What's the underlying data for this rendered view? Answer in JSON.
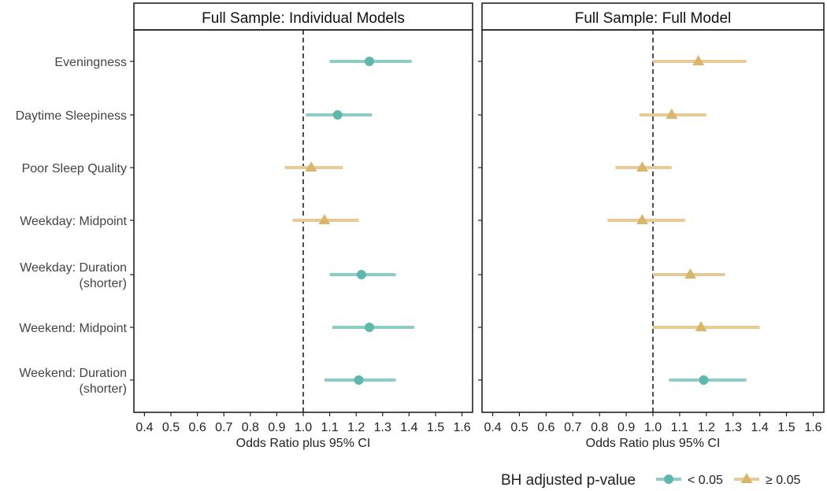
{
  "chart_data": [
    {
      "type": "scatter",
      "panel_title": "Full Sample: Individual Models",
      "xlabel": "Odds Ratio plus 95% CI",
      "xlim": [
        0.36,
        1.64
      ],
      "xticks": [
        "0.4",
        "0.5",
        "0.6",
        "0.7",
        "0.8",
        "0.9",
        "1.0",
        "1.1",
        "1.2",
        "1.3",
        "1.4",
        "1.5",
        "1.6"
      ],
      "reference_line": 1.0,
      "categories": [
        [
          "Eveningness"
        ],
        [
          "Daytime Sleepiness"
        ],
        [
          "Poor Sleep Quality"
        ],
        [
          "Weekday: Midpoint"
        ],
        [
          "Weekday: Duration",
          "(shorter)"
        ],
        [
          "Weekend: Midpoint"
        ],
        [
          "Weekend: Duration",
          "(shorter)"
        ]
      ],
      "points": [
        {
          "or": 1.25,
          "lo": 1.1,
          "hi": 1.41,
          "sig": "lt"
        },
        {
          "or": 1.13,
          "lo": 1.01,
          "hi": 1.26,
          "sig": "lt"
        },
        {
          "or": 1.03,
          "lo": 0.93,
          "hi": 1.15,
          "sig": "ge"
        },
        {
          "or": 1.08,
          "lo": 0.96,
          "hi": 1.21,
          "sig": "ge"
        },
        {
          "or": 1.22,
          "lo": 1.1,
          "hi": 1.35,
          "sig": "lt"
        },
        {
          "or": 1.25,
          "lo": 1.11,
          "hi": 1.42,
          "sig": "lt"
        },
        {
          "or": 1.21,
          "lo": 1.08,
          "hi": 1.35,
          "sig": "lt"
        }
      ]
    },
    {
      "type": "scatter",
      "panel_title": "Full Sample: Full Model",
      "xlabel": "Odds Ratio plus 95% CI",
      "xlim": [
        0.36,
        1.64
      ],
      "xticks": [
        "0.4",
        "0.5",
        "0.6",
        "0.7",
        "0.8",
        "0.9",
        "1.0",
        "1.1",
        "1.2",
        "1.3",
        "1.4",
        "1.5",
        "1.6"
      ],
      "reference_line": 1.0,
      "points": [
        {
          "or": 1.17,
          "lo": 1.0,
          "hi": 1.35,
          "sig": "ge"
        },
        {
          "or": 1.07,
          "lo": 0.95,
          "hi": 1.2,
          "sig": "ge"
        },
        {
          "or": 0.96,
          "lo": 0.86,
          "hi": 1.07,
          "sig": "ge"
        },
        {
          "or": 0.96,
          "lo": 0.83,
          "hi": 1.12,
          "sig": "ge"
        },
        {
          "or": 1.14,
          "lo": 1.0,
          "hi": 1.27,
          "sig": "ge"
        },
        {
          "or": 1.18,
          "lo": 1.0,
          "hi": 1.4,
          "sig": "ge"
        },
        {
          "or": 1.19,
          "lo": 1.06,
          "hi": 1.35,
          "sig": "lt"
        }
      ]
    }
  ],
  "legend": {
    "title": "BH adjusted p-value",
    "items": [
      {
        "key": "lt",
        "label": "< 0.05",
        "shape": "circle",
        "color": "#5fb8ae"
      },
      {
        "key": "ge",
        "label": "≥ 0.05",
        "shape": "triangle",
        "color": "#dab56c"
      }
    ]
  },
  "colors": {
    "lt": "#5fb8ae",
    "lt_bar": "#8dcdc4",
    "ge": "#dab56c",
    "ge_bar": "#e7ca95",
    "frame": "#222222",
    "ref_line": "#222222"
  }
}
